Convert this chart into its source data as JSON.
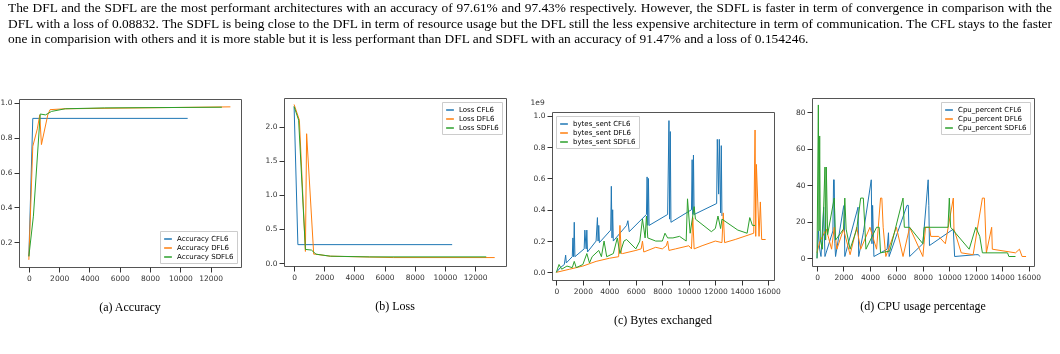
{
  "chart_data": [
    {
      "type": "line",
      "title": "(a) Accuracy",
      "annotations": [
        "The DFL and the SDFL are the most performant architectures with an accuracy of 97.61% and 97.43% respectively. However, the SDFL is faster in term of convergence in comparison with the DFL with a loss of 0.08832. The SDFL is being close to the DFL in term of resource usage but the DFL still the less expensive architecture in term of communication. The CFL stays to the faster one in comparision with others and it is more stable but it is less performant than DFL and SDFL with an accuracy of 91.47% and a loss of 0.154246."
      ],
      "xlim": [
        -650,
        14000
      ],
      "xticks": [
        0,
        2000,
        4000,
        6000,
        8000,
        10000,
        12000
      ],
      "ylim": [
        0.059,
        1.021
      ],
      "yticks": [
        0.2,
        0.4,
        0.6,
        0.8,
        {
          "value": 1,
          "label": "1.0"
        }
      ],
      "grid": false,
      "legend": "bottom right",
      "marker": "none",
      "line_style": "solid",
      "series": [
        {
          "name": "Accuracy CFL6",
          "color": "#1f77b4",
          "x": [
            0,
            260,
            10480
          ],
          "values": [
            0.12,
            0.91,
            0.91
          ]
        },
        {
          "name": "Accuracy DFL6",
          "color": "#ff7f0e",
          "x": [
            0,
            260,
            560,
            720,
            830,
            1250,
            1400,
            2400,
            13300
          ],
          "values": [
            0.1,
            0.75,
            0.85,
            0.93,
            0.76,
            0.93,
            0.96,
            0.965,
            0.976
          ]
        },
        {
          "name": "Accuracy SDFL6",
          "color": "#2ca02c",
          "x": [
            0,
            300,
            750,
            1100,
            1300,
            1500,
            2400,
            5000,
            12740
          ],
          "values": [
            0.12,
            0.35,
            0.935,
            0.93,
            0.94,
            0.95,
            0.965,
            0.97,
            0.974
          ]
        }
      ]
    },
    {
      "type": "line",
      "title": "(b) Loss",
      "xlim": [
        -670,
        14050
      ],
      "xticks": [
        0,
        2000,
        4000,
        6000,
        8000,
        10000,
        12000
      ],
      "ylim": [
        -0.044,
        2.425
      ],
      "yticks": [
        {
          "value": 0,
          "label": "0.0"
        },
        0.5,
        {
          "value": 1,
          "label": "1.0"
        },
        1.5,
        {
          "value": 2,
          "label": "2.0"
        }
      ],
      "grid": false,
      "legend": "top right",
      "marker": "none",
      "line_style": "solid",
      "series": [
        {
          "name": "Loss CFL6",
          "color": "#1f77b4",
          "x": [
            0,
            250,
            10480
          ],
          "values": [
            2.3,
            0.27,
            0.27
          ]
        },
        {
          "name": "Loss DFL6",
          "color": "#ff7f0e",
          "x": [
            0,
            350,
            750,
            830,
            1300,
            1400,
            2400,
            6600,
            13300
          ],
          "values": [
            2.33,
            2.1,
            0.17,
            1.9,
            0.13,
            0.13,
            0.1,
            0.08,
            0.08
          ]
        },
        {
          "name": "Loss SDFL6",
          "color": "#2ca02c",
          "x": [
            0,
            300,
            750,
            1150,
            1450,
            2400,
            5000,
            12740
          ],
          "values": [
            2.3,
            2.1,
            0.2,
            0.19,
            0.13,
            0.1,
            0.09,
            0.09
          ]
        }
      ]
    },
    {
      "type": "line",
      "title": "(c) Bytes exchanged",
      "ylabel": "1e9",
      "xlim": [
        -330,
        16430
      ],
      "xticks": [
        0,
        2000,
        4000,
        6000,
        8000,
        10000,
        12000,
        14000,
        16000
      ],
      "ylim": [
        -0.049,
        1.025
      ],
      "yticks": [
        {
          "value": 0,
          "label": "0.0"
        },
        0.2,
        0.4,
        0.6,
        0.8,
        {
          "value": 1,
          "label": "1.0"
        }
      ],
      "grid": false,
      "legend": "top left",
      "marker": "none",
      "line_style": "solid",
      "series": [
        {
          "name": "bytes_sent CFL6",
          "color": "#1f77b4",
          "x": [
            0,
            300,
            600,
            700,
            750,
            1200,
            1250,
            1300,
            1350,
            1400,
            2100,
            2150,
            2250,
            2300,
            2350,
            3000,
            3100,
            3150,
            3200,
            3250,
            4100,
            4150,
            4200,
            4250,
            4300,
            5300,
            5400,
            5500,
            6800,
            6850,
            6900,
            6950,
            7000,
            8400,
            8500,
            8550,
            8600,
            8650,
            10200,
            10250,
            10300,
            10350,
            10400,
            12100,
            12150,
            12250,
            12300,
            12400,
            12450,
            12500
          ],
          "values": [
            0,
            0.03,
            0.05,
            0.11,
            0.06,
            0.1,
            0.22,
            0.1,
            0.32,
            0.1,
            0.15,
            0.27,
            0.15,
            0.27,
            0.13,
            0.2,
            0.35,
            0.2,
            0.3,
            0.19,
            0.27,
            0.55,
            0.22,
            0.4,
            0.2,
            0.3,
            0.33,
            0.26,
            0.37,
            0.61,
            0.3,
            0.6,
            0.3,
            0.37,
            0.97,
            0.34,
            0.9,
            0.32,
            0.4,
            0.72,
            0.37,
            0.75,
            0.37,
            0.44,
            0.85,
            0.5,
            0.85,
            0.38,
            0.81,
            0.36
          ]
        },
        {
          "name": "bytes_sent DFL6",
          "color": "#ff7f0e",
          "x": [
            0,
            1000,
            2000,
            3000,
            4000,
            4700,
            4800,
            4900,
            5000,
            6000,
            6400,
            6500,
            6600,
            7500,
            8000,
            8300,
            8400,
            8500,
            9000,
            10000,
            10200,
            10300,
            10400,
            11000,
            12000,
            12500,
            12600,
            12700,
            13500,
            14900,
            15000,
            15050,
            15100,
            15300,
            15400,
            15500,
            15800
          ],
          "values": [
            0,
            0.02,
            0.04,
            0.07,
            0.09,
            0.1,
            0.3,
            0.12,
            0.12,
            0.14,
            0.15,
            0.2,
            0.13,
            0.16,
            0.15,
            0.17,
            0.2,
            0.14,
            0.15,
            0.17,
            0.15,
            0.35,
            0.15,
            0.17,
            0.2,
            0.19,
            0.38,
            0.19,
            0.21,
            0.25,
            0.91,
            0.23,
            0.69,
            0.23,
            0.45,
            0.21,
            0.21
          ]
        },
        {
          "name": "bytes_sent SDFL6",
          "color": "#2ca02c",
          "x": [
            0,
            200,
            400,
            800,
            1200,
            1350,
            1500,
            2000,
            2300,
            2500,
            2700,
            3200,
            3400,
            3600,
            3800,
            4300,
            4600,
            4800,
            5100,
            5300,
            6000,
            6300,
            6500,
            6700,
            6800,
            6900,
            7500,
            8000,
            8200,
            8400,
            8800,
            9300,
            9800,
            9900,
            10100,
            10400,
            10500,
            11700,
            12000,
            12200,
            12400,
            12500,
            13700,
            14400,
            14600,
            14800,
            15000
          ],
          "values": [
            0,
            0.05,
            0.02,
            0.04,
            0.03,
            0.07,
            0.03,
            0.05,
            0.12,
            0.06,
            0.1,
            0.14,
            0.1,
            0.2,
            0.1,
            0.12,
            0.22,
            0.12,
            0.2,
            0.21,
            0.15,
            0.2,
            0.34,
            0.22,
            0.36,
            0.22,
            0.2,
            0.2,
            0.25,
            0.22,
            0.22,
            0.23,
            0.2,
            0.47,
            0.25,
            0.42,
            0.34,
            0.26,
            0.28,
            0.36,
            0.28,
            0.34,
            0.27,
            0.25,
            0.35,
            0.3,
            0.3
          ]
        }
      ]
    },
    {
      "type": "line",
      "title": "(d) CPU usage percentage",
      "xlim": [
        -380,
        16400
      ],
      "xticks": [
        0,
        2000,
        4000,
        6000,
        8000,
        10000,
        12000,
        14000,
        16000
      ],
      "ylim": [
        -4.2,
        87.8
      ],
      "yticks": [
        0,
        20,
        40,
        60,
        80
      ],
      "grid": false,
      "legend": "top right",
      "marker": "none",
      "line_style": "solid",
      "series": [
        {
          "name": "Cpu_percent CFL6",
          "color": "#1f77b4",
          "x": [
            0,
            100,
            200,
            300,
            500,
            600,
            1200,
            1250,
            1300,
            1350,
            1400,
            2000,
            2050,
            2100,
            3100,
            3150,
            3500,
            4100,
            4150,
            4200,
            4300,
            5300,
            5400,
            5450,
            6800,
            6900,
            7000,
            8000,
            8400,
            8450,
            8500,
            10300,
            10400,
            12000,
            12200,
            12300
          ],
          "values": [
            0,
            15,
            5,
            1,
            28,
            1,
            15,
            43,
            43,
            8,
            1,
            28,
            29,
            1,
            28,
            1,
            14,
            43,
            8,
            29,
            1,
            5,
            14,
            1,
            29,
            29,
            1,
            8,
            43,
            29,
            7,
            16,
            1,
            2,
            2,
            1
          ]
        },
        {
          "name": "Cpu_percent DFL6",
          "color": "#ff7f0e",
          "x": [
            0,
            200,
            700,
            1100,
            1300,
            1500,
            2000,
            2500,
            3000,
            3300,
            4000,
            4500,
            4800,
            4900,
            5000,
            5200,
            6000,
            6500,
            7000,
            8000,
            8200,
            8500,
            8600,
            9200,
            9700,
            10300,
            10350,
            10900,
            11800,
            12500,
            12650,
            12800,
            13200,
            13250,
            15000,
            15300,
            15500,
            15800
          ],
          "values": [
            3,
            9,
            16,
            5,
            17,
            5,
            16,
            2,
            17,
            5,
            17,
            5,
            33,
            33,
            17,
            1,
            17,
            1,
            17,
            1,
            17,
            17,
            12,
            12,
            8,
            33,
            16,
            3,
            2,
            33,
            33,
            3,
            17,
            5,
            3,
            5,
            1,
            1
          ]
        },
        {
          "name": "Cpu_percent SDFL6",
          "color": "#2ca02c",
          "x": [
            0,
            100,
            150,
            200,
            250,
            400,
            600,
            650,
            700,
            800,
            1300,
            1400,
            2000,
            2100,
            2200,
            2500,
            3000,
            3300,
            3500,
            3700,
            4500,
            4700,
            4800,
            5500,
            6500,
            6600,
            7000,
            8000,
            8100,
            9900,
            10000,
            10100,
            11500,
            12000,
            12300,
            12500,
            14400,
            14500,
            15000
          ],
          "values": [
            0,
            84,
            15,
            67,
            10,
            5,
            50,
            10,
            50,
            13,
            33,
            10,
            16,
            33,
            16,
            5,
            16,
            33,
            33,
            5,
            17,
            17,
            3,
            4,
            33,
            17,
            17,
            8,
            17,
            17,
            33,
            17,
            5,
            17,
            12,
            3,
            3,
            1,
            1
          ]
        }
      ]
    }
  ]
}
